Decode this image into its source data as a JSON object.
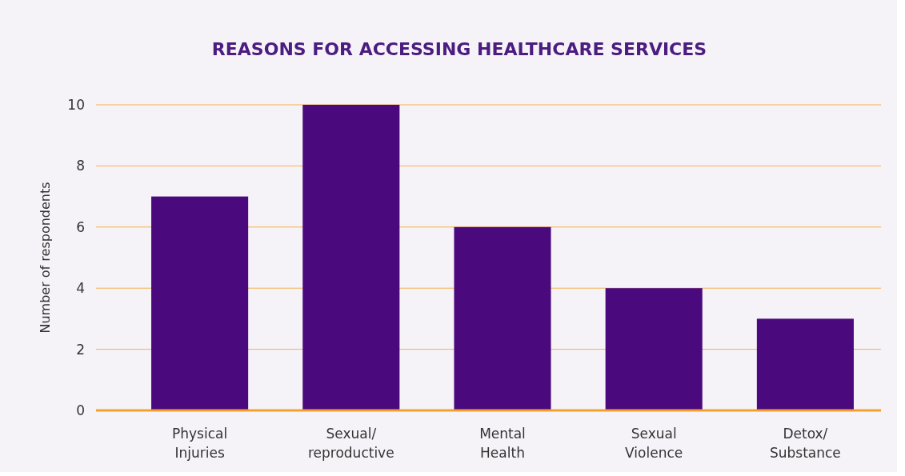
{
  "chart_data": {
    "type": "bar",
    "title": "REASONS FOR ACCESSING HEALTHCARE SERVICES",
    "ylabel": "Number of respondents",
    "categories": [
      "Physical Injuries",
      "Sexual/ reproductive",
      "Mental Health",
      "Sexual Violence",
      "Detox/ Substance"
    ],
    "values": [
      7,
      10,
      6,
      4,
      3
    ],
    "color": "#4a0a7e",
    "ylim": [
      0,
      10
    ],
    "yticks": [
      0,
      2,
      4,
      6,
      8,
      10
    ],
    "grid": "y"
  }
}
